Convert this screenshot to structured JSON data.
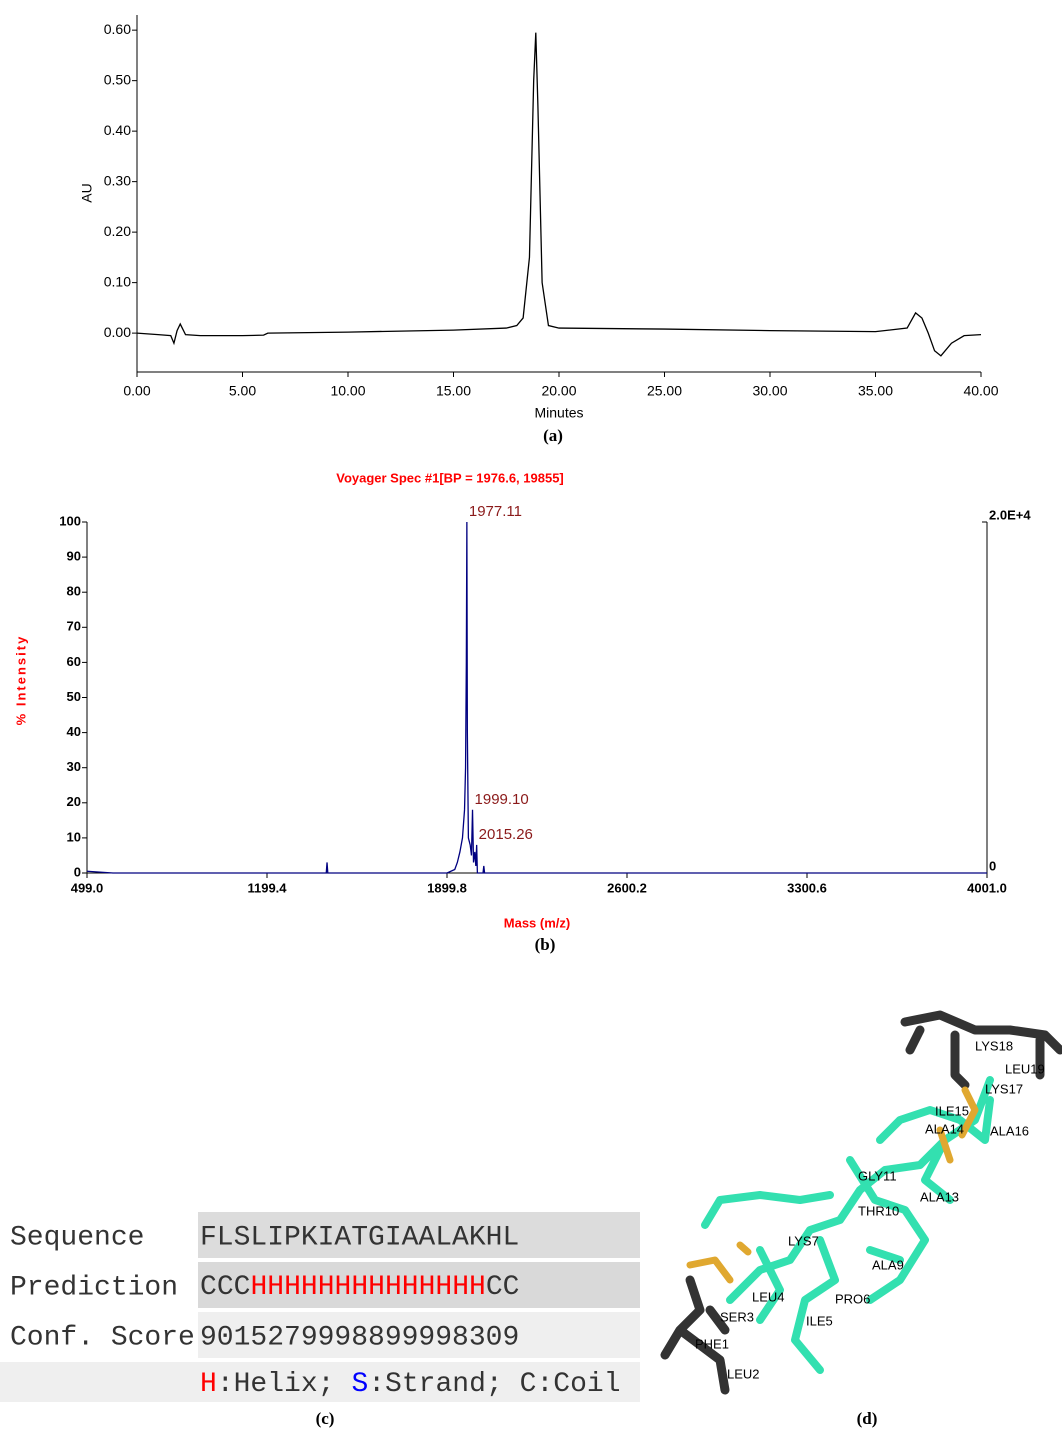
{
  "chart_data": [
    {
      "type": "line",
      "xlabel": "Minutes",
      "ylabel": "AU",
      "xlim": [
        0,
        40
      ],
      "ylim": [
        -0.077,
        0.63
      ],
      "xticks": [
        {
          "value": 0,
          "label": "0.00"
        },
        {
          "value": 5,
          "label": "5.00"
        },
        {
          "value": 10,
          "label": "10.00"
        },
        {
          "value": 15,
          "label": "15.00"
        },
        {
          "value": 20,
          "label": "20.00"
        },
        {
          "value": 25,
          "label": "25.00"
        },
        {
          "value": 30,
          "label": "30.00"
        },
        {
          "value": 35,
          "label": "35.00"
        },
        {
          "value": 40,
          "label": "40.00"
        }
      ],
      "yticks": [
        {
          "value": 0,
          "label": "0.00"
        },
        {
          "value": 0.1,
          "label": "0.10"
        },
        {
          "value": 0.2,
          "label": "0.20"
        },
        {
          "value": 0.3,
          "label": "0.30"
        },
        {
          "value": 0.4,
          "label": "0.40"
        },
        {
          "value": 0.5,
          "label": "0.50"
        },
        {
          "value": 0.6,
          "label": "0.60"
        }
      ],
      "x": [
        0,
        1,
        1.6,
        1.75,
        1.9,
        2.05,
        2.3,
        3,
        5,
        6,
        6.2,
        10,
        15,
        17.5,
        18.0,
        18.3,
        18.6,
        18.8,
        18.9,
        19.0,
        19.2,
        19.5,
        20,
        25,
        30,
        35,
        36.5,
        36.9,
        37.2,
        37.5,
        37.8,
        38.1,
        38.6,
        39.2,
        40
      ],
      "series": [
        {
          "color": "#000000",
          "values": [
            0,
            -0.003,
            -0.005,
            -0.02,
            0.005,
            0.018,
            -0.003,
            -0.005,
            -0.005,
            -0.004,
            0.0,
            0.002,
            0.006,
            0.01,
            0.015,
            0.03,
            0.15,
            0.5,
            0.595,
            0.45,
            0.1,
            0.015,
            0.01,
            0.008,
            0.005,
            0.003,
            0.01,
            0.04,
            0.03,
            0.0,
            -0.035,
            -0.045,
            -0.02,
            -0.005,
            -0.003
          ]
        }
      ]
    },
    {
      "type": "line",
      "title": "Voyager Spec #1[BP = 1976.6, 19855]",
      "xlabel": "Mass (m/z)",
      "ylabel": "% Intensity",
      "xlim": [
        499,
        4001
      ],
      "ylim": [
        0,
        100
      ],
      "y2lim": [
        0,
        20000
      ],
      "xticks": [
        {
          "value": 499,
          "label": "499.0"
        },
        {
          "value": 1199.4,
          "label": "1199.4"
        },
        {
          "value": 1899.8,
          "label": "1899.8"
        },
        {
          "value": 2600.2,
          "label": "2600.2"
        },
        {
          "value": 3300.6,
          "label": "3300.6"
        },
        {
          "value": 4001,
          "label": "4001.0"
        }
      ],
      "yticks": [
        0,
        10,
        20,
        30,
        40,
        50,
        60,
        70,
        80,
        90,
        100
      ],
      "y2ticks": [
        0,
        {
          "value": 20000,
          "label": "2.0E+4"
        }
      ],
      "x": [
        499,
        600,
        1400,
        1430,
        1433,
        1436,
        1460,
        1900,
        1930,
        1940,
        1950,
        1960,
        1968,
        1972,
        1975,
        1977.11,
        1979,
        1983,
        1990,
        1995,
        1999.1,
        2003,
        2008,
        2012,
        2015.26,
        2018,
        2030,
        2040,
        2043,
        2046,
        2060,
        4001
      ],
      "series": [
        {
          "color": "#000080",
          "values": [
            0.5,
            0,
            0,
            0,
            3,
            0,
            0,
            0,
            1,
            3,
            6,
            10,
            18,
            30,
            60,
            100,
            40,
            10,
            8,
            5,
            18,
            3,
            6,
            2,
            8,
            0,
            0,
            0,
            2,
            0,
            0,
            0
          ]
        }
      ],
      "annotations": [
        "1977.11",
        "1999.10",
        "2015.26"
      ]
    }
  ],
  "captions": [
    "(a)",
    "(b)",
    "(c)",
    "(d)"
  ],
  "table": {
    "rows": [
      [
        "Sequence",
        "FLSLIPKIATGIAALAKHL"
      ],
      [
        "Prediction",
        "CCCHHHHHHHHHHHHHHCC"
      ],
      [
        "Conf. Score",
        "9015279998899998309"
      ]
    ],
    "colors": {
      "H": "#ff0000",
      "S": "#0000ff"
    },
    "legend": [
      {
        "code": "H",
        "text": ":Helix;"
      },
      {
        "code": "S",
        "text": ":Strand;"
      },
      {
        "code": "C",
        "text": ":Coil"
      }
    ]
  },
  "structure": {
    "labels": [
      "LYS18",
      "LEU19",
      "LYS17",
      "ILE15",
      "ALA14",
      "ALA16",
      "GLY11",
      "ALA13",
      "THR10",
      "LYS7",
      "ALA9",
      "LEU4",
      "PRO6",
      "SER3",
      "ILE5",
      "PHE1",
      "LEU2"
    ]
  }
}
